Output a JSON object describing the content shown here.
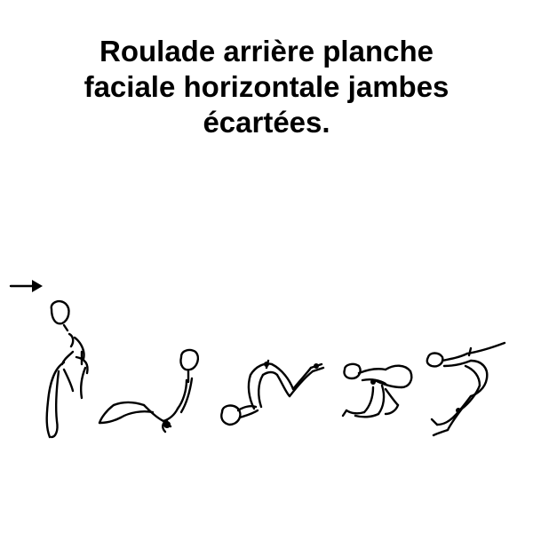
{
  "title": {
    "line1": "Roulade arrière planche",
    "line2": "faciale horizontale jambes",
    "line3": "écartées."
  },
  "sequence": {
    "direction": "right",
    "stages": [
      {
        "name": "standing"
      },
      {
        "name": "sitting-back"
      },
      {
        "name": "rolling-back"
      },
      {
        "name": "inverted-tuck"
      },
      {
        "name": "horizontal-plank"
      }
    ]
  }
}
